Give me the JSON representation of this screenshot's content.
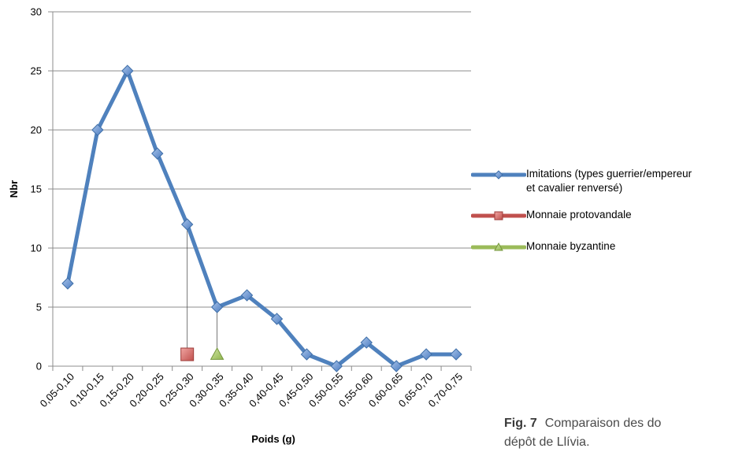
{
  "chart_data": {
    "type": "line",
    "xlabel": "Poids (g)",
    "ylabel": "Nbr",
    "ylim": [
      0,
      30
    ],
    "yticks": [
      0,
      5,
      10,
      15,
      20,
      25,
      30
    ],
    "grid": true,
    "legend_position": "right",
    "categories": [
      "0,05-0,10",
      "0,10-0,15",
      "0,15-0,20",
      "0,20-0,25",
      "0,25-0,30",
      "0,30-0,35",
      "0,35-0,40",
      "0,40-0,45",
      "0,45-0,50",
      "0,50-0,55",
      "0,55-0,60",
      "0,60-0,65",
      "0,65-0,70",
      "0,70-0,75"
    ],
    "series": [
      {
        "name": "Imitations (types guerrier/empereur et cavalier renversé)",
        "legend_lines": [
          "Imitations (types guerrier/empereur",
          "et cavalier renversé)"
        ],
        "marker": "diamond",
        "color": "#4f81bd",
        "values": [
          7,
          20,
          25,
          18,
          12,
          5,
          6,
          4,
          1,
          0,
          2,
          0,
          1,
          1
        ]
      },
      {
        "name": "Monnaie protovandale",
        "legend_lines": [
          "Monnaie protovandale"
        ],
        "marker": "square",
        "color": "#c0504d",
        "values": [
          null,
          null,
          null,
          null,
          1,
          null,
          null,
          null,
          null,
          null,
          null,
          null,
          null,
          null
        ]
      },
      {
        "name": "Monnaie byzantine",
        "legend_lines": [
          "Monnaie byzantine"
        ],
        "marker": "triangle",
        "color": "#9bbb59",
        "values": [
          null,
          null,
          null,
          null,
          null,
          1,
          null,
          null,
          null,
          null,
          null,
          null,
          null,
          null
        ]
      }
    ],
    "annotations": [
      {
        "type": "drop-line",
        "category": "0,25-0,30",
        "from": 12,
        "to": 1
      },
      {
        "type": "drop-line",
        "category": "0,30-0,35",
        "from": 5,
        "to": 1
      }
    ]
  },
  "caption": {
    "label": "Fig. 7",
    "line1": "Comparaison des do",
    "line2": "dépôt de Llívia."
  }
}
